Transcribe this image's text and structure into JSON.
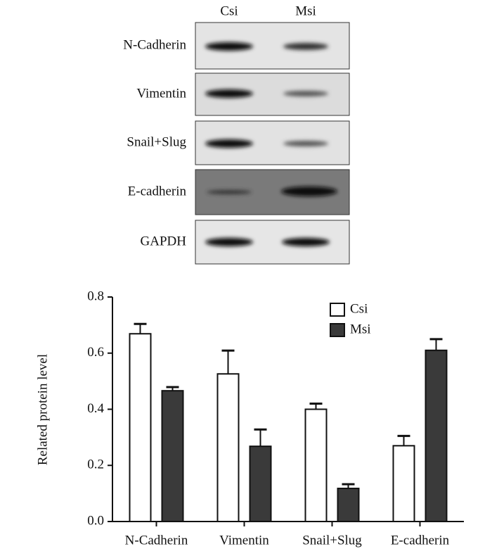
{
  "blot": {
    "columns": [
      "Csi",
      "Msi"
    ],
    "rows": [
      "N-Cadherin",
      "Vimentin",
      "Snail+Slug",
      "E-cadherin",
      "GAPDH"
    ]
  },
  "chart_data": {
    "type": "bar",
    "ylabel": "Related protein level",
    "categories": [
      "N-Cadherin",
      "Vimentin",
      "Snail+Slug",
      "E-cadherin"
    ],
    "series": [
      {
        "name": "Csi",
        "color": "#ffffff",
        "values": [
          0.669,
          0.526,
          0.4,
          0.27
        ],
        "errors": [
          0.035,
          0.083,
          0.02,
          0.035
        ]
      },
      {
        "name": "Msi",
        "color": "#3a3a3a",
        "values": [
          0.466,
          0.268,
          0.118,
          0.61
        ],
        "errors": [
          0.013,
          0.06,
          0.015,
          0.04
        ]
      }
    ],
    "ylim": [
      0,
      0.8
    ],
    "yticks": [
      {
        "value": 0,
        "label": "0.0"
      },
      0.2,
      0.4,
      0.6,
      0.8
    ],
    "legend": "upper right"
  }
}
